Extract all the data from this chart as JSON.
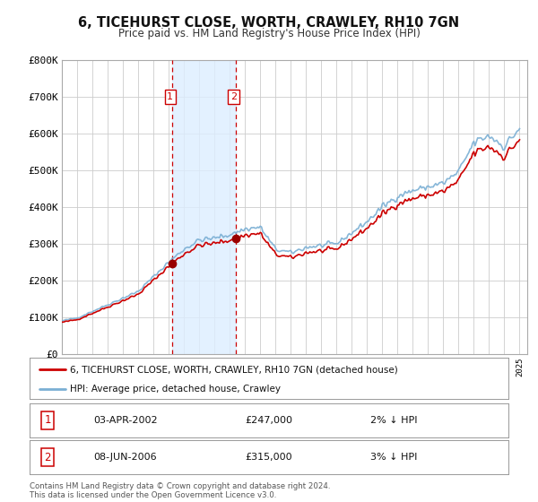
{
  "title": "6, TICEHURST CLOSE, WORTH, CRAWLEY, RH10 7GN",
  "subtitle": "Price paid vs. HM Land Registry's House Price Index (HPI)",
  "ylabel_ticks": [
    "£0",
    "£100K",
    "£200K",
    "£300K",
    "£400K",
    "£500K",
    "£600K",
    "£700K",
    "£800K"
  ],
  "ylim": [
    0,
    800000
  ],
  "ytick_vals": [
    0,
    100000,
    200000,
    300000,
    400000,
    500000,
    600000,
    700000,
    800000
  ],
  "purchase1_year": 2002.25,
  "purchase1_price": 247000,
  "purchase1_label": "03-APR-2002",
  "purchase1_note": "2% ↓ HPI",
  "purchase2_year": 2006.42,
  "purchase2_price": 315000,
  "purchase2_label": "08-JUN-2006",
  "purchase2_note": "3% ↓ HPI",
  "line_color_property": "#cc0000",
  "line_color_hpi": "#7aafd4",
  "legend_label_property": "6, TICEHURST CLOSE, WORTH, CRAWLEY, RH10 7GN (detached house)",
  "legend_label_hpi": "HPI: Average price, detached house, Crawley",
  "footer": "Contains HM Land Registry data © Crown copyright and database right 2024.\nThis data is licensed under the Open Government Licence v3.0.",
  "background_color": "#ffffff",
  "plot_bg_color": "#ffffff",
  "grid_color": "#cccccc",
  "highlight_color": "#ddeeff",
  "xstart": 1995,
  "xend": 2025
}
